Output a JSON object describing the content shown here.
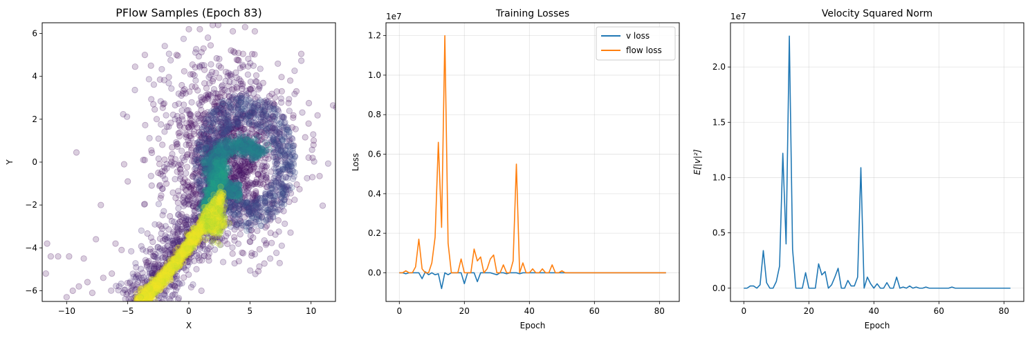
{
  "chart_data": [
    {
      "type": "scatter",
      "title": "PFlow Samples (Epoch 83)",
      "xlabel": "X",
      "ylabel": "Y",
      "xlim": [
        -12,
        12
      ],
      "ylim": [
        -6.5,
        6.5
      ],
      "xticks": [
        -10,
        -5,
        0,
        5,
        10
      ],
      "yticks": [
        -6,
        -4,
        -2,
        0,
        2,
        4,
        6
      ],
      "grid": false,
      "colormap": "viridis",
      "point_alpha": 0.2,
      "outlier_points": [
        [
          -11.6,
          -3.8
        ],
        [
          -11.7,
          -5.2
        ],
        [
          -11.3,
          -4.4
        ],
        [
          -10.7,
          -4.4
        ],
        [
          -10.0,
          -6.3
        ],
        [
          -9.8,
          -4.4
        ],
        [
          -9.5,
          -6.0
        ],
        [
          -9.2,
          0.45
        ],
        [
          -9.0,
          -5.8
        ],
        [
          -8.6,
          -4.5
        ],
        [
          -8.3,
          -5.6
        ],
        [
          -7.9,
          -6.1
        ],
        [
          -7.6,
          -3.6
        ],
        [
          -7.2,
          -2.0
        ],
        [
          -7.0,
          -5.4
        ],
        [
          -6.3,
          -5.2
        ],
        [
          -6.0,
          -3.8
        ],
        [
          -5.5,
          -4.1
        ],
        [
          -5.3,
          -0.1
        ],
        [
          -5.0,
          -0.9
        ],
        [
          -4.4,
          4.45
        ],
        [
          -3.6,
          5.0
        ],
        [
          -3.1,
          4.5
        ],
        [
          -2.5,
          -0.5
        ],
        [
          -2.1,
          2.7
        ],
        [
          -1.0,
          5.0
        ],
        [
          -0.5,
          3.2
        ],
        [
          0.0,
          6.2
        ],
        [
          0.9,
          6.2
        ],
        [
          1.2,
          5.3
        ],
        [
          2.4,
          6.4
        ],
        [
          3.6,
          6.1
        ],
        [
          4.6,
          6.3
        ],
        [
          5.4,
          6.1
        ],
        [
          7.6,
          3.3
        ],
        [
          8.3,
          3.8
        ],
        [
          8.8,
          3.3
        ],
        [
          9.2,
          5.05
        ],
        [
          9.8,
          1.8
        ],
        [
          10.2,
          0.8
        ],
        [
          10.7,
          -0.65
        ]
      ]
    },
    {
      "type": "line",
      "title": "Training Losses",
      "xlabel": "Epoch",
      "ylabel": "Loss",
      "scale_label": "1e7",
      "scale": 10000000,
      "xlim": [
        -4.1,
        86.1
      ],
      "ylim": [
        -0.145,
        1.265
      ],
      "xticks": [
        0,
        20,
        40,
        60,
        80
      ],
      "yticks": [
        0.0,
        0.2,
        0.4,
        0.6,
        0.8,
        1.0,
        1.2
      ],
      "ytick_labels": [
        "0.0",
        "0.2",
        "0.4",
        "0.6",
        "0.8",
        "1.0",
        "1.2"
      ],
      "grid": true,
      "legend_position": "top-right",
      "x": [
        0,
        1,
        2,
        3,
        4,
        5,
        6,
        7,
        8,
        9,
        10,
        11,
        12,
        13,
        14,
        15,
        16,
        17,
        18,
        19,
        20,
        21,
        22,
        23,
        24,
        25,
        26,
        27,
        28,
        29,
        30,
        31,
        32,
        33,
        34,
        35,
        36,
        37,
        38,
        39,
        40,
        41,
        42,
        43,
        44,
        45,
        46,
        47,
        48,
        49,
        50,
        51,
        52,
        53,
        54,
        55,
        56,
        57,
        58,
        59,
        60,
        61,
        62,
        63,
        64,
        65,
        66,
        67,
        68,
        69,
        70,
        71,
        72,
        73,
        74,
        75,
        76,
        77,
        78,
        79,
        80,
        81,
        82
      ],
      "series": [
        {
          "name": "v loss",
          "color": "#1f77b4",
          "values": [
            0.0,
            0.0,
            -0.005,
            0.0,
            0.0,
            0.0,
            0.0,
            -0.03,
            0.005,
            -0.01,
            0.0,
            -0.01,
            -0.005,
            -0.08,
            0.0,
            -0.01,
            0.0,
            0.0,
            0.0,
            0.0,
            -0.055,
            0.0,
            0.0,
            0.0,
            -0.045,
            0.0,
            0.0,
            0.0,
            0.0,
            -0.005,
            -0.01,
            0.0,
            0.0,
            -0.005,
            0.0,
            0.0,
            0.0,
            -0.005,
            0.0,
            0.0,
            0.0,
            0.0,
            0.0,
            0.0,
            0.0,
            0.0,
            0.0,
            0.0,
            0.0,
            0.0,
            0.0,
            0.0,
            0.0,
            0.0,
            0.0,
            0.0,
            0.0,
            0.0,
            0.0,
            0.0,
            0.0,
            0.0,
            0.0,
            0.0,
            0.0,
            0.0,
            0.0,
            0.0,
            0.0,
            0.0,
            0.0,
            0.0,
            0.0,
            0.0,
            0.0,
            0.0,
            0.0,
            0.0,
            0.0,
            0.0,
            0.0,
            0.0,
            0.0
          ]
        },
        {
          "name": "flow loss",
          "color": "#ff7f0e",
          "values": [
            0.0,
            0.0,
            0.01,
            0.0,
            0.0,
            0.03,
            0.17,
            0.02,
            0.0,
            0.0,
            0.05,
            0.18,
            0.66,
            0.23,
            1.2,
            0.15,
            0.0,
            0.0,
            0.0,
            0.07,
            0.0,
            0.0,
            0.0,
            0.12,
            0.06,
            0.08,
            0.0,
            0.02,
            0.07,
            0.09,
            0.0,
            0.0,
            0.04,
            0.0,
            0.0,
            0.06,
            0.55,
            0.0,
            0.05,
            0.0,
            0.0,
            0.02,
            0.0,
            0.0,
            0.02,
            0.0,
            0.0,
            0.04,
            0.0,
            0.0,
            0.01,
            0.0,
            0.0,
            0.0,
            0.0,
            0.0,
            0.0,
            0.0,
            0.0,
            0.0,
            0.0,
            0.0,
            0.0,
            0.0,
            0.0,
            0.0,
            0.0,
            0.0,
            0.0,
            0.0,
            0.0,
            0.0,
            0.0,
            0.0,
            0.0,
            0.0,
            0.0,
            0.0,
            0.0,
            0.0,
            0.0,
            0.0,
            0.0
          ]
        }
      ]
    },
    {
      "type": "line",
      "title": "Velocity Squared Norm",
      "xlabel": "Epoch",
      "ylabel": "E[|v|²]",
      "scale_label": "1e7",
      "scale": 10000000,
      "xlim": [
        -4.1,
        86.1
      ],
      "ylim": [
        -0.12,
        2.4
      ],
      "xticks": [
        0,
        20,
        40,
        60,
        80
      ],
      "yticks": [
        0.0,
        0.5,
        1.0,
        1.5,
        2.0
      ],
      "ytick_labels": [
        "0.0",
        "0.5",
        "1.0",
        "1.5",
        "2.0"
      ],
      "grid": true,
      "x": [
        0,
        1,
        2,
        3,
        4,
        5,
        6,
        7,
        8,
        9,
        10,
        11,
        12,
        13,
        14,
        15,
        16,
        17,
        18,
        19,
        20,
        21,
        22,
        23,
        24,
        25,
        26,
        27,
        28,
        29,
        30,
        31,
        32,
        33,
        34,
        35,
        36,
        37,
        38,
        39,
        40,
        41,
        42,
        43,
        44,
        45,
        46,
        47,
        48,
        49,
        50,
        51,
        52,
        53,
        54,
        55,
        56,
        57,
        58,
        59,
        60,
        61,
        62,
        63,
        64,
        65,
        66,
        67,
        68,
        69,
        70,
        71,
        72,
        73,
        74,
        75,
        76,
        77,
        78,
        79,
        80,
        81,
        82
      ],
      "series": [
        {
          "color": "#1f77b4",
          "values": [
            0.0,
            0.0,
            0.02,
            0.02,
            0.0,
            0.03,
            0.34,
            0.05,
            0.0,
            0.0,
            0.06,
            0.2,
            1.22,
            0.4,
            2.28,
            0.35,
            0.0,
            0.0,
            0.0,
            0.14,
            0.0,
            0.0,
            0.0,
            0.22,
            0.12,
            0.15,
            0.0,
            0.03,
            0.1,
            0.18,
            0.0,
            0.0,
            0.07,
            0.02,
            0.02,
            0.1,
            1.09,
            0.0,
            0.1,
            0.04,
            0.0,
            0.04,
            0.0,
            0.0,
            0.05,
            0.0,
            0.0,
            0.1,
            0.0,
            0.01,
            0.0,
            0.02,
            0.0,
            0.01,
            0.0,
            0.0,
            0.01,
            0.0,
            0.0,
            0.0,
            0.0,
            0.0,
            0.0,
            0.0,
            0.01,
            0.0,
            0.0,
            0.0,
            0.0,
            0.0,
            0.0,
            0.0,
            0.0,
            0.0,
            0.0,
            0.0,
            0.0,
            0.0,
            0.0,
            0.0,
            0.0,
            0.0,
            0.0
          ]
        }
      ]
    }
  ]
}
